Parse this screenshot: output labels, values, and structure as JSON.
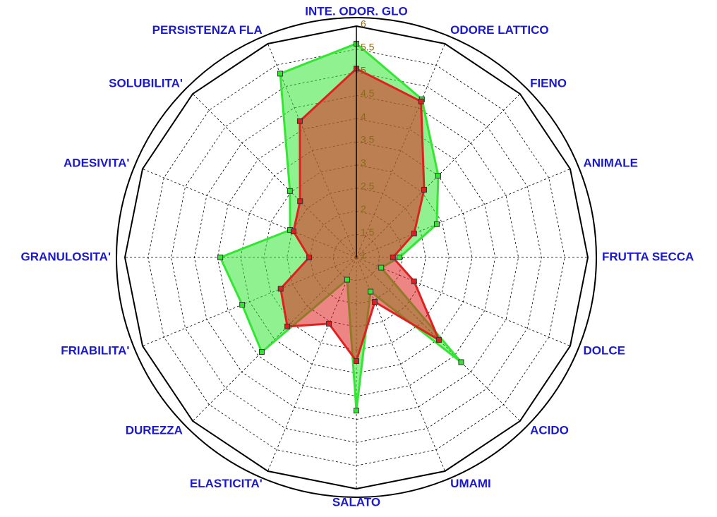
{
  "chart_data": {
    "type": "radar",
    "categories": [
      "INTE. ODOR. GLO",
      "ODORE LATTICO",
      "FIENO",
      "ANIMALE",
      "FRUTTA SECCA",
      "DOLCE",
      "ACIDO",
      "UMAMI",
      "SALATO",
      "ELASTICITA'",
      "DUREZZA",
      "FRIABILITA'",
      "GRANULOSITA'",
      "ADESIVITA'",
      "SOLUBILITA'",
      "PERSISTENZA FLA"
    ],
    "series": [
      {
        "color": "#33e633",
        "values": [
          5.62,
          4.7,
          3.5,
          2.88,
          1.93,
          1.58,
          4.2,
          1.8,
          4.31,
          1.52,
          3.89,
          3.67,
          3.94,
          2.55,
          3.03,
          5.3
        ]
      },
      {
        "color": "#e02020",
        "values": [
          5.08,
          4.65,
          3.07,
          2.35,
          1.79,
          2.35,
          3.52,
          2.04,
          3.24,
          2.55,
          3.11,
          2.77,
          2.02,
          2.47,
          2.72,
          4.19
        ]
      }
    ],
    "ylim": [
      1,
      6
    ],
    "yticks": [
      1,
      1.5,
      2,
      2.5,
      3,
      3.5,
      4,
      4.5,
      5,
      5.5,
      6
    ],
    "grid": true
  }
}
